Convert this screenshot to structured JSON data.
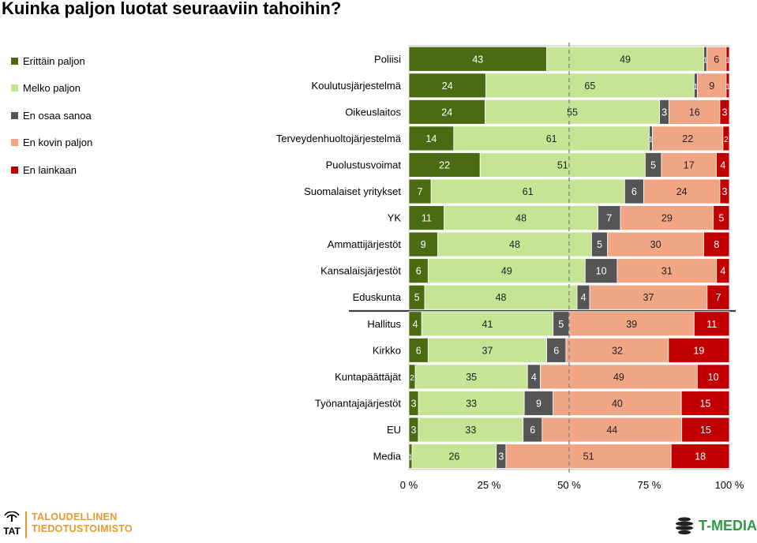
{
  "chart_data": {
    "type": "bar",
    "stacked": "horizontal-100",
    "title": "Kuinka paljon luotat seuraaviin tahoihin?",
    "categories": [
      "Poliisi",
      "Koulutusjärjestelmä",
      "Oikeuslaitos",
      "Terveydenhuoltojärjestelmä",
      "Puolustusvoimat",
      "Suomalaiset yritykset",
      "YK",
      "Ammattijärjestöt",
      "Kansalaisjärjestöt",
      "Eduskunta",
      "Hallitus",
      "Kirkko",
      "Kuntapäättäjät",
      "Työnantajajärjestöt",
      "EU",
      "Media"
    ],
    "series": [
      {
        "name": "Erittäin paljon",
        "color": "#4b6b12",
        "values": [
          43,
          24,
          24,
          14,
          22,
          7,
          11,
          9,
          6,
          5,
          4,
          6,
          2,
          3,
          3,
          1
        ]
      },
      {
        "name": "Melko paljon",
        "color": "#c6e594",
        "values": [
          49,
          65,
          55,
          61,
          51,
          61,
          48,
          48,
          49,
          48,
          41,
          37,
          35,
          33,
          33,
          26
        ]
      },
      {
        "name": "En osaa sanoa",
        "color": "#555555",
        "values": [
          1,
          1,
          3,
          1,
          5,
          6,
          7,
          5,
          10,
          4,
          5,
          6,
          4,
          9,
          6,
          3
        ]
      },
      {
        "name": "En kovin paljon",
        "color": "#f0a585",
        "values": [
          6,
          9,
          16,
          22,
          17,
          24,
          29,
          30,
          31,
          37,
          39,
          32,
          49,
          40,
          44,
          51
        ]
      },
      {
        "name": "En lainkaan",
        "color": "#c00000",
        "values": [
          1,
          1,
          3,
          2,
          4,
          3,
          5,
          8,
          4,
          7,
          11,
          19,
          10,
          15,
          15,
          18
        ]
      }
    ],
    "x_ticks": [
      "0 %",
      "25 %",
      "50 %",
      "75 %",
      "100 %"
    ],
    "xlim": [
      0,
      100
    ],
    "reference_line": 50,
    "group_separator_after": "Eduskunta",
    "legend_position": "left"
  },
  "logos": {
    "tat_mark": "TAT",
    "tat_name_line1": "TALOUDELLINEN",
    "tat_name_line2": "TIEDOTUSTOIMISTO",
    "tmedia": "T-MEDIA"
  }
}
